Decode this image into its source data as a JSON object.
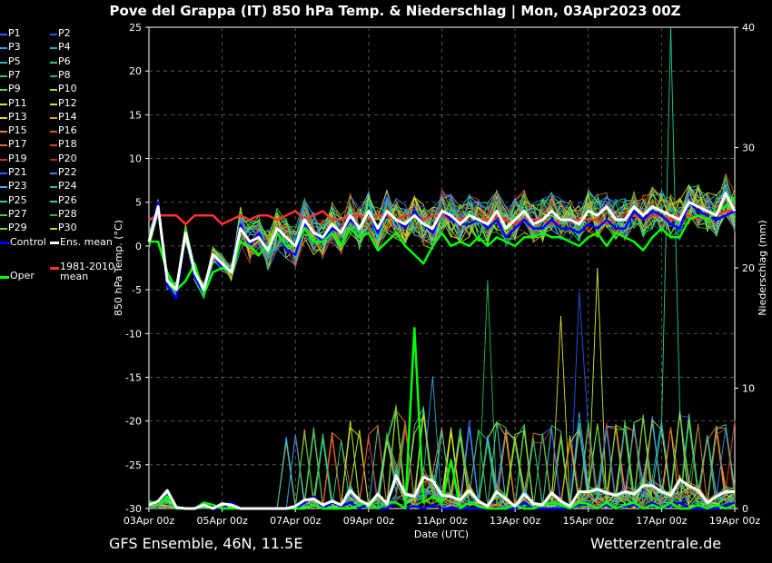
{
  "title": "Pove del Grappa  (IT)  850 hPa Temp. & Niederschlag | Mon, 03Apr2023 00Z",
  "footer_left": "GFS Ensemble, 46N, 11.5E",
  "footer_right": "Wetterzentrale.de",
  "colors": {
    "background": "#000000",
    "control": "#0000ff",
    "ens_mean": "#ffffff",
    "oper": "#00ff00",
    "clim_mean": "#ff3030",
    "grid": "#666666"
  },
  "legend": [
    {
      "label": "P1",
      "color": "#3355ff"
    },
    {
      "label": "P2",
      "color": "#2255ee"
    },
    {
      "label": "P3",
      "color": "#3399ff"
    },
    {
      "label": "P4",
      "color": "#22aadd"
    },
    {
      "label": "P5",
      "color": "#22bbcc"
    },
    {
      "label": "P6",
      "color": "#22cc99"
    },
    {
      "label": "P7",
      "color": "#33cc66"
    },
    {
      "label": "P8",
      "color": "#22bb44"
    },
    {
      "label": "P9",
      "color": "#55dd33"
    },
    {
      "label": "P10",
      "color": "#88ee22"
    },
    {
      "label": "P11",
      "color": "#ccee33"
    },
    {
      "label": "P12",
      "color": "#dddd22"
    },
    {
      "label": "P13",
      "color": "#eecc22"
    },
    {
      "label": "P14",
      "color": "#ee9922"
    },
    {
      "label": "P15",
      "color": "#dd8833"
    },
    {
      "label": "P16",
      "color": "#cc6622"
    },
    {
      "label": "P17",
      "color": "#ee6633"
    },
    {
      "label": "P18",
      "color": "#dd4422"
    },
    {
      "label": "P19",
      "color": "#cc3322"
    },
    {
      "label": "P20",
      "color": "#bb2222"
    },
    {
      "label": "P21",
      "color": "#3366ff"
    },
    {
      "label": "P22",
      "color": "#3388ee"
    },
    {
      "label": "P23",
      "color": "#44aaee"
    },
    {
      "label": "P24",
      "color": "#22bbbb"
    },
    {
      "label": "P25",
      "color": "#33ccaa"
    },
    {
      "label": "P26",
      "color": "#22dd88"
    },
    {
      "label": "P27",
      "color": "#44cc55"
    },
    {
      "label": "P28",
      "color": "#33bb33"
    },
    {
      "label": "P29",
      "color": "#77dd22"
    },
    {
      "label": "P30",
      "color": "#bbdd22"
    },
    {
      "label": "Control",
      "color": "#0000ff"
    },
    {
      "label": "Ens. mean",
      "color": "#ffffff"
    },
    {
      "label": "Oper",
      "color": "#00ff00"
    },
    {
      "label": "1981-2010\nmean",
      "color": "#ff3030"
    }
  ],
  "chart_data": {
    "type": "line",
    "title": "Pove del Grappa  (IT)  850 hPa Temp. & Niederschlag | Mon, 03Apr2023 00Z",
    "xlabel": "Date (UTC)",
    "ylabel": "850 hPa Temp. (°C)",
    "y2label": "Niederschlag (mm)",
    "x_ticks": [
      "03Apr 00z",
      "05Apr 00z",
      "07Apr 00z",
      "09Apr 00z",
      "11Apr 00z",
      "13Apr 00z",
      "15Apr 00z",
      "17Apr 00z",
      "19Apr 00z"
    ],
    "x_range_hours": [
      0,
      384
    ],
    "step_hours": 6,
    "ylim": [
      -30,
      25
    ],
    "y_ticks": [
      25,
      20,
      15,
      10,
      5,
      0,
      -5,
      -10,
      -15,
      -20,
      -25,
      -30
    ],
    "y2lim": [
      0,
      40
    ],
    "y2_ticks": [
      40,
      30,
      20,
      10,
      0
    ],
    "grid": true,
    "series": [
      {
        "name": "Control",
        "quantity": "temperature",
        "values": [
          0.5,
          5,
          -4.5,
          -6,
          1.5,
          -3.5,
          -5.5,
          -1,
          -2.5,
          -3,
          2.5,
          0,
          1.5,
          -0.5,
          2,
          -0.5,
          -1,
          2.5,
          1.5,
          0.5,
          2,
          1.5,
          3,
          2,
          4,
          1.5,
          4,
          3,
          2,
          4,
          2.5,
          1.5,
          4,
          3,
          2.5,
          2.5,
          3,
          2,
          3,
          1,
          2,
          3,
          2,
          2,
          3,
          2,
          2,
          1.5,
          2.5,
          2,
          3,
          2,
          2,
          4,
          3,
          4,
          3.5,
          2.5,
          2,
          5,
          4,
          3.5,
          3,
          3.5,
          4
        ]
      },
      {
        "name": "Ens. mean",
        "quantity": "temperature",
        "values": [
          0.5,
          4.5,
          -4,
          -5,
          1.5,
          -3,
          -5,
          -1,
          -2,
          -3,
          2,
          0.5,
          1,
          -0.5,
          2,
          1,
          0,
          3,
          1.5,
          1,
          2.5,
          1.5,
          3.5,
          2,
          4,
          2,
          4,
          3,
          2.5,
          3.5,
          2.5,
          2,
          4,
          3.5,
          2.5,
          3.5,
          3,
          2.5,
          4,
          2,
          3,
          4,
          2.5,
          3,
          4,
          3,
          3,
          2.5,
          4,
          3.5,
          4.5,
          3,
          3,
          4.5,
          3.5,
          4.5,
          4,
          3.5,
          3,
          5,
          4.5,
          4,
          3.5,
          6,
          4
        ]
      },
      {
        "name": "Oper",
        "quantity": "temperature",
        "values": [
          0.5,
          0.5,
          -3,
          -5,
          -4,
          -2,
          -5.5,
          -3,
          -2.5,
          -3,
          0.5,
          0,
          -1,
          0,
          1.5,
          0,
          0,
          2,
          0.5,
          0.5,
          1.5,
          0,
          2,
          1,
          1.5,
          -0.5,
          0.5,
          1.5,
          0,
          -1,
          -2,
          0,
          1.5,
          0,
          0.5,
          0,
          1,
          0,
          1,
          0.5,
          0,
          1,
          1,
          1.5,
          1,
          1,
          0.5,
          0,
          1,
          1.5,
          0,
          1.5,
          1,
          0.5,
          -0.5,
          1,
          2,
          1,
          1,
          3,
          3.5,
          3,
          4,
          4.5,
          5.5
        ]
      },
      {
        "name": "1981-2010 mean",
        "quantity": "temperature",
        "values": [
          3,
          3.5,
          3.5,
          3.5,
          2.5,
          3.5,
          3.5,
          3.5,
          2.5,
          3,
          3.5,
          3,
          3.5,
          3.5,
          3,
          3.5,
          4,
          3,
          3.5,
          4,
          3,
          3,
          3.5,
          3.5,
          3,
          3.5,
          3.5,
          3,
          3.5,
          3.5,
          3,
          3.5,
          3.5,
          3,
          3,
          3.5,
          3,
          3,
          3.5,
          3,
          2.5,
          3,
          3,
          3,
          2.5,
          3,
          3,
          3,
          3,
          3,
          2.5,
          3,
          3,
          3.5,
          3,
          3.5,
          3.5,
          3,
          3.5,
          3.5,
          3,
          3.5,
          3.5,
          4,
          4
        ]
      },
      {
        "name": "Control",
        "quantity": "precipitation",
        "values": [
          0.3,
          0.5,
          1.5,
          0,
          0,
          0,
          0.3,
          0,
          0,
          0.5,
          0,
          0,
          0,
          0,
          0,
          0,
          0,
          0.5,
          1,
          0,
          0.5,
          0.2,
          0.5,
          0,
          0.5,
          0,
          0,
          0.5,
          0,
          0.2,
          0,
          0.3,
          0,
          0,
          0,
          0,
          0,
          0,
          0,
          0,
          0,
          0.5,
          0,
          0,
          0,
          0,
          0,
          0.3,
          0.5,
          0,
          0.3,
          0,
          0.2,
          0.3,
          0,
          0.5,
          0,
          0.3,
          0.5,
          0,
          0,
          0,
          0,
          0.3,
          0.5
        ]
      },
      {
        "name": "Ens. mean",
        "quantity": "precipitation",
        "values": [
          0.3,
          0.6,
          1.5,
          0.1,
          0,
          0,
          0.3,
          0,
          0.4,
          0.3,
          0,
          0,
          0,
          0,
          0,
          0,
          0.2,
          0.7,
          0.8,
          0.3,
          0.6,
          0.3,
          1.5,
          0.7,
          0.3,
          1.2,
          0.4,
          2.7,
          1.2,
          1,
          2.6,
          2.3,
          1.1,
          1,
          0.7,
          1.5,
          0.6,
          0.2,
          1.4,
          0.8,
          0.2,
          1.2,
          0.4,
          0.3,
          1.3,
          0.6,
          0.2,
          1.4,
          1.4,
          1.6,
          1.3,
          1.1,
          1.4,
          1.2,
          1.9,
          1.9,
          1.4,
          1.1,
          2.4,
          1.9,
          1.5,
          0.5,
          1,
          1.4,
          1.4
        ]
      },
      {
        "name": "Oper",
        "quantity": "precipitation",
        "values": [
          0.6,
          0.3,
          1,
          0,
          0,
          0,
          0.5,
          0.3,
          0,
          0,
          0,
          0,
          0,
          0,
          0,
          0,
          0,
          0,
          0.3,
          0,
          0,
          0,
          0,
          0.3,
          0.5,
          0,
          0.5,
          0.5,
          0,
          15,
          0.5,
          1,
          0.5,
          4,
          0,
          0.5,
          0.2,
          0,
          0,
          0,
          0.3,
          0,
          0,
          0.3,
          0.5,
          0.3,
          0,
          0.5,
          0.4,
          0,
          0.5,
          0,
          0.3,
          0.5,
          0,
          0.3,
          0,
          0.5,
          0,
          0,
          0.3,
          0,
          0.3,
          0,
          0.3
        ]
      }
    ],
    "highlighted_members": [
      {
        "name": "P6",
        "quantity": "precipitation",
        "peak": [
          57,
          40
        ]
      },
      {
        "name": "P12",
        "quantity": "precipitation",
        "peak": [
          45,
          16
        ]
      },
      {
        "name": "P11",
        "quantity": "precipitation",
        "peak": [
          49,
          20
        ]
      },
      {
        "name": "P8",
        "quantity": "precipitation",
        "peak": [
          37,
          19
        ]
      },
      {
        "name": "P2",
        "quantity": "precipitation",
        "peak": [
          47,
          18
        ]
      },
      {
        "name": "P23",
        "quantity": "precipitation",
        "peak": [
          47,
          8
        ]
      },
      {
        "name": "P4",
        "quantity": "precipitation",
        "peak": [
          31,
          11
        ]
      }
    ]
  }
}
